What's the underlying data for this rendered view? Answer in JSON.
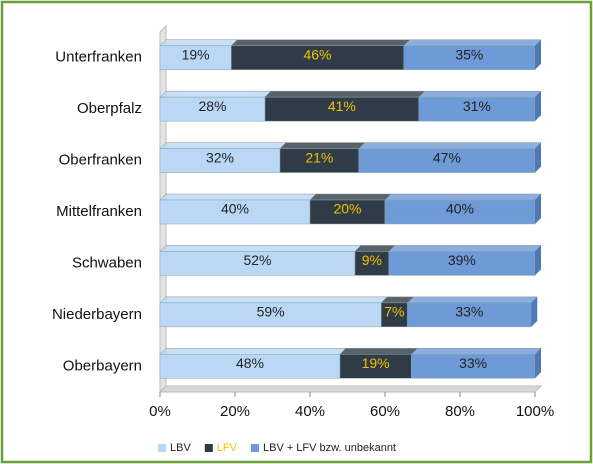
{
  "chart_data": {
    "type": "stacked-bar-horizontal",
    "categories": [
      "Unterfranken",
      "Oberpfalz",
      "Oberfranken",
      "Mittelfranken",
      "Schwaben",
      "Niederbayern",
      "Oberbayern"
    ],
    "series": [
      {
        "name": "LBV",
        "color": "#bad8f6",
        "label_color": "#222222",
        "values": [
          19,
          28,
          32,
          40,
          52,
          59,
          48
        ],
        "value_labels": [
          "19%",
          "28%",
          "32%",
          "40%",
          "52%",
          "59%",
          "48%"
        ]
      },
      {
        "name": "LFV",
        "color": "#2f3b47",
        "label_color": "#f2c200",
        "values": [
          46,
          41,
          21,
          20,
          9,
          7,
          19
        ],
        "value_labels": [
          "46%",
          "41%",
          "21%",
          "20%",
          "9%",
          "7%",
          "19%"
        ]
      },
      {
        "name": "LBV + LFV bzw. unbekannt",
        "color": "#6e9ad8",
        "label_color": "#222222",
        "values": [
          35,
          31,
          47,
          40,
          39,
          33,
          33
        ],
        "value_labels": [
          "35%",
          "31%",
          "47%",
          "40%",
          "39%",
          "33%",
          "33%"
        ]
      }
    ],
    "xlim": [
      0,
      100
    ],
    "xticks": [
      {
        "value": 0,
        "label": "0%"
      },
      {
        "value": 20,
        "label": "20%"
      },
      {
        "value": 40,
        "label": "40%"
      },
      {
        "value": 60,
        "label": "60%"
      },
      {
        "value": 80,
        "label": "80%"
      },
      {
        "value": 100,
        "label": "100%"
      }
    ],
    "legend": "bottom"
  }
}
